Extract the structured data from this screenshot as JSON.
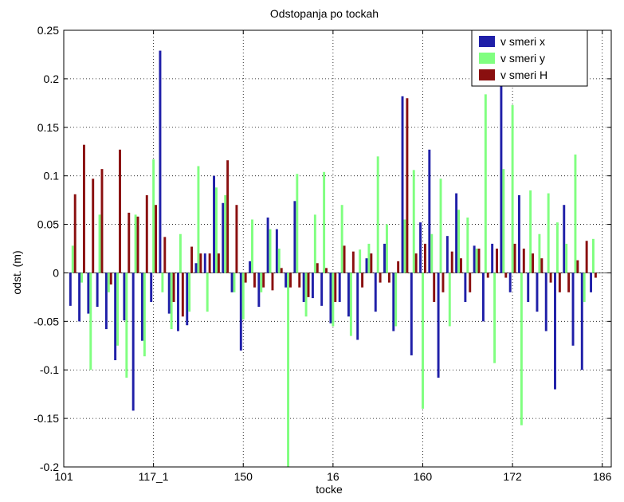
{
  "chart_data": {
    "type": "bar",
    "title": "Odstopanja po tockah",
    "xlabel": "tocke",
    "ylabel": "odst. (m)",
    "ylim": [
      -0.2,
      0.25
    ],
    "y_ticks": [
      -0.2,
      -0.15,
      -0.1,
      -0.05,
      0,
      0.05,
      0.1,
      0.15,
      0.2,
      0.25
    ],
    "y_tick_labels": [
      "-0.2",
      "-0.15",
      "-0.1",
      "-0.05",
      "0",
      "0.05",
      "0.1",
      "0.15",
      "0.2",
      "0.25"
    ],
    "x_index_range": [
      0,
      61
    ],
    "x_ticks": [
      0,
      10,
      20,
      30,
      40,
      50,
      60
    ],
    "x_tick_labels": [
      "101",
      "117_1",
      "150",
      "16",
      "160",
      "172",
      "186"
    ],
    "grid": true,
    "legend_position": "top-right",
    "colors": {
      "v smeri x": "#1f1fa8",
      "v smeri y": "#80ff80",
      "v smeri H": "#8a0f0f"
    },
    "series": [
      {
        "name": "v smeri x",
        "values": [
          -0.034,
          -0.05,
          -0.042,
          -0.035,
          -0.058,
          -0.09,
          -0.049,
          -0.142,
          -0.07,
          -0.03,
          0.229,
          -0.042,
          -0.06,
          -0.054,
          0.01,
          0.02,
          0.1,
          0.072,
          -0.02,
          -0.08,
          0.012,
          -0.035,
          0.057,
          0.045,
          -0.015,
          0.074,
          -0.03,
          -0.026,
          -0.034,
          -0.052,
          -0.03,
          -0.045,
          -0.069,
          0.015,
          -0.04,
          0.03,
          -0.06,
          0.182,
          -0.085,
          0.052,
          0.127,
          -0.108,
          0.038,
          0.082,
          -0.03,
          0.028,
          -0.05,
          0.03,
          0.243,
          -0.02,
          0.08,
          -0.03,
          -0.04,
          -0.06,
          -0.12,
          0.07,
          -0.075,
          -0.1,
          -0.02
        ]
      },
      {
        "name": "v smeri y",
        "values": [
          0.028,
          -0.01,
          -0.1,
          0.06,
          -0.02,
          -0.075,
          -0.108,
          0.06,
          -0.086,
          0.117,
          -0.02,
          -0.058,
          0.04,
          -0.04,
          0.11,
          -0.04,
          0.088,
          0.08,
          -0.02,
          -0.048,
          0.055,
          -0.02,
          0.045,
          0.025,
          -0.2,
          0.102,
          -0.045,
          0.06,
          0.104,
          -0.055,
          0.07,
          -0.065,
          0.024,
          0.03,
          0.12,
          0.05,
          -0.055,
          0.055,
          0.106,
          -0.14,
          0.04,
          0.097,
          -0.055,
          0.065,
          0.057,
          0.025,
          0.184,
          -0.093,
          0.107,
          0.173,
          -0.157,
          0.085,
          0.04,
          0.082,
          0.052,
          0.03,
          0.122,
          -0.03,
          0.035
        ]
      },
      {
        "name": "v smeri H",
        "values": [
          0.081,
          0.132,
          0.097,
          0.107,
          -0.012,
          0.127,
          0.062,
          0.058,
          0.08,
          0.07,
          0.037,
          -0.03,
          -0.045,
          0.027,
          0.02,
          0.02,
          0.02,
          0.116,
          0.07,
          -0.01,
          -0.015,
          -0.015,
          -0.018,
          0.005,
          -0.015,
          -0.015,
          -0.025,
          0.01,
          0.005,
          -0.03,
          0.028,
          0.022,
          -0.015,
          0.02,
          -0.01,
          -0.01,
          0.012,
          0.18,
          0.02,
          0.03,
          -0.03,
          -0.02,
          0.022,
          0.015,
          -0.02,
          0.025,
          -0.005,
          0.025,
          -0.005,
          0.03,
          0.025,
          0.02,
          0.015,
          -0.01,
          -0.02,
          -0.02,
          0.013,
          0.033,
          -0.005
        ]
      }
    ]
  }
}
